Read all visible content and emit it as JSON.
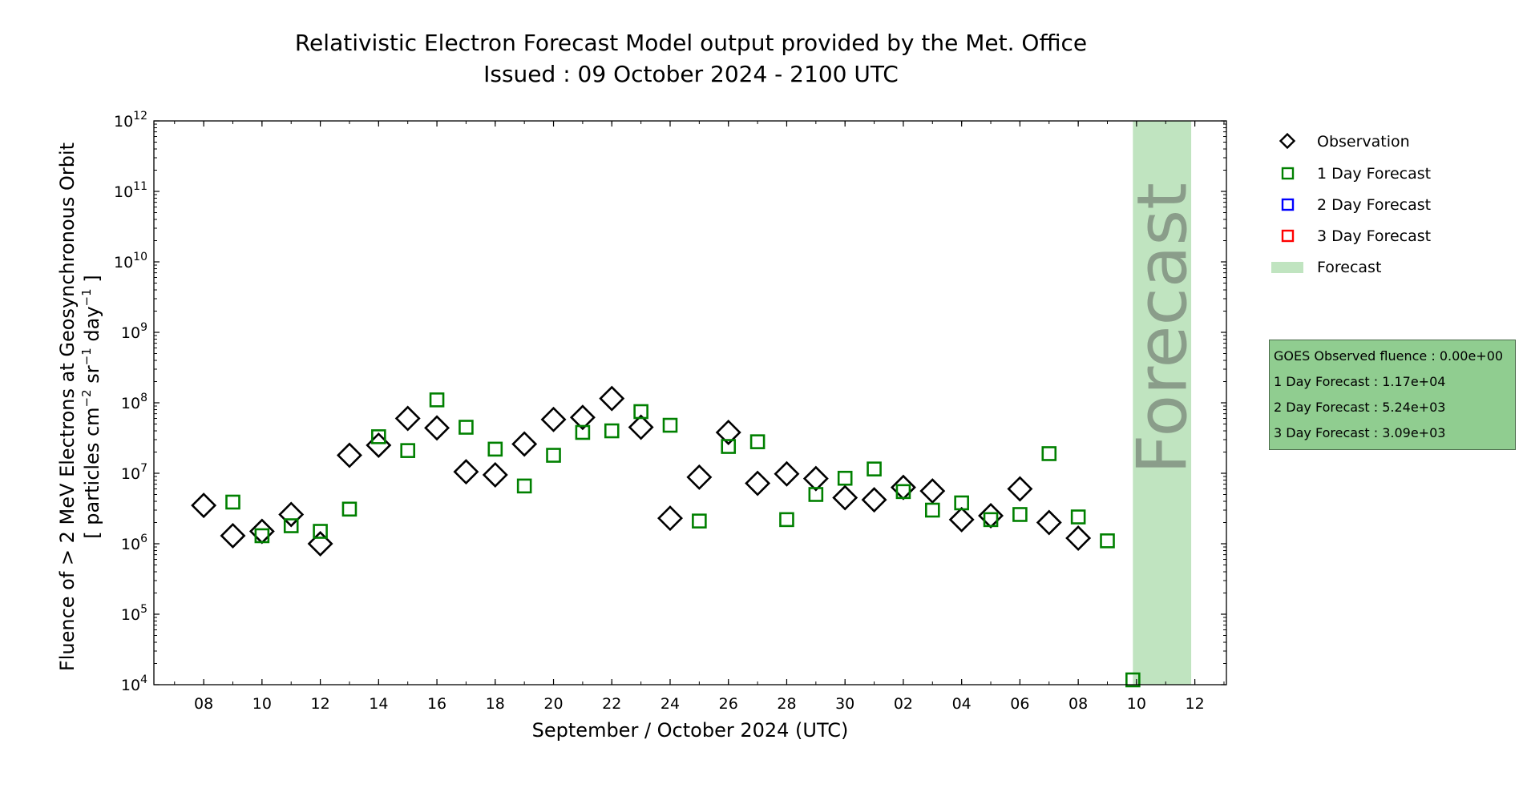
{
  "chart_data": {
    "type": "scatter",
    "title": "Relativistic Electron Forecast Model output provided by the Met. Office",
    "subtitle": "Issued : 09 October 2024 - 2100 UTC",
    "xlabel": "September / October 2024 (UTC)",
    "ylabel": {
      "line1": "Fluence of > 2 MeV Electrons at Geosynchronous Orbit",
      "line2_prefix": "[ particles cm",
      "line2_exp1": "−2",
      "line2_mid1": " sr",
      "line2_exp2": "−1",
      "line2_mid2": " day",
      "line2_exp3": "−1",
      "line2_suffix": " ]"
    },
    "y_scale": "log",
    "ylim": [
      10000,
      1000000000000
    ],
    "y_ticks": [
      {
        "base": "10",
        "exp": "4",
        "value": 10000
      },
      {
        "base": "10",
        "exp": "5",
        "value": 100000
      },
      {
        "base": "10",
        "exp": "6",
        "value": 1000000
      },
      {
        "base": "10",
        "exp": "7",
        "value": 10000000
      },
      {
        "base": "10",
        "exp": "8",
        "value": 100000000
      },
      {
        "base": "10",
        "exp": "9",
        "value": 1000000000
      },
      {
        "base": "10",
        "exp": "10",
        "value": 10000000000
      },
      {
        "base": "10",
        "exp": "11",
        "value": 100000000000
      },
      {
        "base": "10",
        "exp": "12",
        "value": 1000000000000
      }
    ],
    "xlim": [
      "2024-09-06T07:00",
      "2024-10-13T02:00"
    ],
    "x_ticks": [
      {
        "label": "08",
        "date": "2024-09-08"
      },
      {
        "label": "10",
        "date": "2024-09-10"
      },
      {
        "label": "12",
        "date": "2024-09-12"
      },
      {
        "label": "14",
        "date": "2024-09-14"
      },
      {
        "label": "16",
        "date": "2024-09-16"
      },
      {
        "label": "18",
        "date": "2024-09-18"
      },
      {
        "label": "20",
        "date": "2024-09-20"
      },
      {
        "label": "22",
        "date": "2024-09-22"
      },
      {
        "label": "24",
        "date": "2024-09-24"
      },
      {
        "label": "26",
        "date": "2024-09-26"
      },
      {
        "label": "28",
        "date": "2024-09-28"
      },
      {
        "label": "30",
        "date": "2024-09-30"
      },
      {
        "label": "02",
        "date": "2024-10-02"
      },
      {
        "label": "04",
        "date": "2024-10-04"
      },
      {
        "label": "06",
        "date": "2024-10-06"
      },
      {
        "label": "08",
        "date": "2024-10-08"
      },
      {
        "label": "10",
        "date": "2024-10-10"
      },
      {
        "label": "12",
        "date": "2024-10-12"
      }
    ],
    "forecast_band": {
      "start": "2024-10-09T21:00",
      "end": "2024-10-11T21:00",
      "label": "Forecast",
      "color": "#c0e4c0"
    },
    "legend": {
      "placement": "top-right, outside plot",
      "entries": [
        {
          "label": "Observation",
          "marker": "diamond",
          "color": "#000000"
        },
        {
          "label": "1 Day Forecast",
          "marker": "square",
          "color": "#008000"
        },
        {
          "label": "2 Day Forecast",
          "marker": "square",
          "color": "#0000ff"
        },
        {
          "label": "3 Day Forecast",
          "marker": "square",
          "color": "#ff0000"
        },
        {
          "label": "Forecast",
          "marker": "band",
          "color": "#c0e4c0"
        }
      ]
    },
    "series": [
      {
        "name": "Observation",
        "marker": "diamond",
        "color": "#000000",
        "points": [
          {
            "x": "2024-09-08",
            "y": 3500000
          },
          {
            "x": "2024-09-09",
            "y": 1300000
          },
          {
            "x": "2024-09-10",
            "y": 1500000
          },
          {
            "x": "2024-09-11",
            "y": 2600000
          },
          {
            "x": "2024-09-12",
            "y": 1000000
          },
          {
            "x": "2024-09-13",
            "y": 18000000
          },
          {
            "x": "2024-09-14",
            "y": 25000000
          },
          {
            "x": "2024-09-15",
            "y": 60000000
          },
          {
            "x": "2024-09-16",
            "y": 44000000
          },
          {
            "x": "2024-09-17",
            "y": 10500000
          },
          {
            "x": "2024-09-18",
            "y": 9500000
          },
          {
            "x": "2024-09-19",
            "y": 26000000
          },
          {
            "x": "2024-09-20",
            "y": 58000000
          },
          {
            "x": "2024-09-21",
            "y": 62000000
          },
          {
            "x": "2024-09-22",
            "y": 115000000
          },
          {
            "x": "2024-09-23",
            "y": 45000000
          },
          {
            "x": "2024-09-24",
            "y": 2300000
          },
          {
            "x": "2024-09-25",
            "y": 8800000
          },
          {
            "x": "2024-09-26",
            "y": 38000000
          },
          {
            "x": "2024-09-27",
            "y": 7200000
          },
          {
            "x": "2024-09-28",
            "y": 9800000
          },
          {
            "x": "2024-09-29",
            "y": 8400000
          },
          {
            "x": "2024-09-30",
            "y": 4500000
          },
          {
            "x": "2024-10-01",
            "y": 4200000
          },
          {
            "x": "2024-10-02",
            "y": 6300000
          },
          {
            "x": "2024-10-03",
            "y": 5600000
          },
          {
            "x": "2024-10-04",
            "y": 2200000
          },
          {
            "x": "2024-10-05",
            "y": 2500000
          },
          {
            "x": "2024-10-06",
            "y": 6000000
          },
          {
            "x": "2024-10-07",
            "y": 2000000
          },
          {
            "x": "2024-10-08",
            "y": 1200000
          }
        ]
      },
      {
        "name": "1 Day Forecast",
        "marker": "square",
        "color": "#008000",
        "points": [
          {
            "x": "2024-09-09",
            "y": 3900000
          },
          {
            "x": "2024-09-10",
            "y": 1300000
          },
          {
            "x": "2024-09-11",
            "y": 1800000
          },
          {
            "x": "2024-09-12",
            "y": 1500000
          },
          {
            "x": "2024-09-13",
            "y": 3100000
          },
          {
            "x": "2024-09-14",
            "y": 33000000
          },
          {
            "x": "2024-09-15",
            "y": 21000000
          },
          {
            "x": "2024-09-16",
            "y": 110000000
          },
          {
            "x": "2024-09-17",
            "y": 45000000
          },
          {
            "x": "2024-09-18",
            "y": 22000000
          },
          {
            "x": "2024-09-19",
            "y": 6600000
          },
          {
            "x": "2024-09-20",
            "y": 18000000
          },
          {
            "x": "2024-09-21",
            "y": 38000000
          },
          {
            "x": "2024-09-22",
            "y": 40000000
          },
          {
            "x": "2024-09-23",
            "y": 75000000
          },
          {
            "x": "2024-09-24",
            "y": 48000000
          },
          {
            "x": "2024-09-25",
            "y": 2100000
          },
          {
            "x": "2024-09-26",
            "y": 24000000
          },
          {
            "x": "2024-09-27",
            "y": 28000000
          },
          {
            "x": "2024-09-28",
            "y": 2200000
          },
          {
            "x": "2024-09-29",
            "y": 5000000
          },
          {
            "x": "2024-09-30",
            "y": 8500000
          },
          {
            "x": "2024-10-01",
            "y": 11500000
          },
          {
            "x": "2024-10-02",
            "y": 5500000
          },
          {
            "x": "2024-10-03",
            "y": 3000000
          },
          {
            "x": "2024-10-04",
            "y": 3800000
          },
          {
            "x": "2024-10-05",
            "y": 2200000
          },
          {
            "x": "2024-10-06",
            "y": 2600000
          },
          {
            "x": "2024-10-07",
            "y": 19000000
          },
          {
            "x": "2024-10-08",
            "y": 2400000
          },
          {
            "x": "2024-10-09",
            "y": 1100000
          },
          {
            "x": "2024-10-09T21:00",
            "y": 11700
          }
        ]
      }
    ]
  },
  "info_box": {
    "lines": [
      "GOES Observed fluence : 0.00e+00",
      "1 Day Forecast : 1.17e+04",
      "2 Day Forecast : 5.24e+03",
      "3 Day Forecast : 3.09e+03"
    ],
    "background": "#90cd90"
  }
}
